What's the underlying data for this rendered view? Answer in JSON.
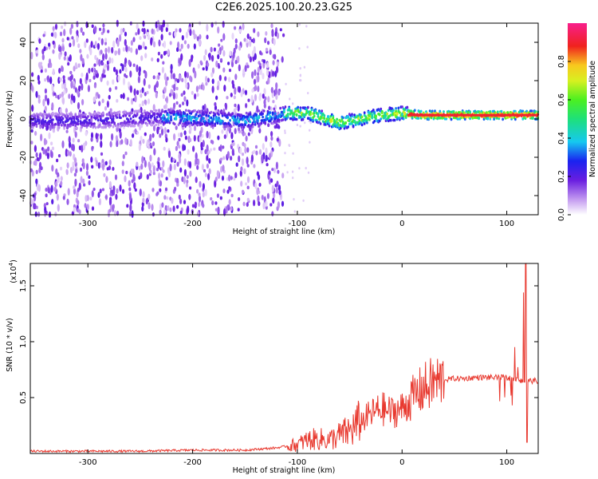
{
  "title": "C2E6.2025.100.20.23.G25",
  "chart_data": [
    {
      "type": "heatmap",
      "xlabel": "Height of straight line (km)",
      "ylabel": "Frequency (Hz)",
      "xlim": [
        -355,
        130
      ],
      "ylim": [
        -50,
        50
      ],
      "xticks": [
        -300,
        -200,
        -100,
        0,
        100
      ],
      "yticks": [
        -40,
        -20,
        0,
        20,
        40
      ],
      "colorbar": {
        "label": "Normalized spectral amplitude",
        "range": [
          0,
          1
        ],
        "ticks": [
          "0.0",
          "0.2",
          "0.4",
          "0.6",
          "0.8"
        ]
      },
      "features": [
        {
          "x_range": [
            -355,
            -113
          ],
          "description": "broadband noise across all frequencies"
        },
        {
          "x_range": [
            -113,
            130
          ],
          "description": "signal concentrated near 0 to 3 Hz"
        }
      ],
      "ridge": {
        "x": [
          -355,
          -300,
          -230,
          -200,
          -150,
          -110,
          -90,
          -60,
          -40,
          -20,
          0,
          20,
          60,
          90,
          110,
          130
        ],
        "y": [
          -1,
          -1,
          1,
          0.5,
          -1,
          3,
          3,
          -2,
          0,
          2,
          3,
          2,
          2,
          2,
          2,
          2
        ]
      }
    },
    {
      "type": "line",
      "xlabel": "Height of straight line (km)",
      "ylabel": "SNR (10 * v/v)",
      "yscale_label": "(x10",
      "yscale_exp": "4",
      "xlim": [
        -355,
        130
      ],
      "ylim": [
        0,
        1.7
      ],
      "xticks": [
        -300,
        -200,
        -100,
        0,
        100
      ],
      "yticks": [
        "0.5",
        "1.0",
        "1.5"
      ],
      "series": [
        {
          "color": "#e8392f",
          "x": [
            -355,
            -300,
            -250,
            -200,
            -150,
            -120,
            -100,
            -90,
            -80,
            -70,
            -60,
            -50,
            -40,
            -30,
            -20,
            -10,
            0,
            10,
            20,
            30,
            40,
            50,
            60,
            70,
            80,
            90,
            100,
            110,
            116,
            118,
            120,
            130
          ],
          "y": [
            0.02,
            0.02,
            0.02,
            0.03,
            0.03,
            0.05,
            0.08,
            0.12,
            0.13,
            0.12,
            0.16,
            0.2,
            0.28,
            0.35,
            0.4,
            0.37,
            0.4,
            0.5,
            0.58,
            0.63,
            0.66,
            0.67,
            0.67,
            0.68,
            0.68,
            0.68,
            0.68,
            0.66,
            0.64,
            0.65,
            0.65,
            0.65
          ]
        }
      ]
    }
  ]
}
